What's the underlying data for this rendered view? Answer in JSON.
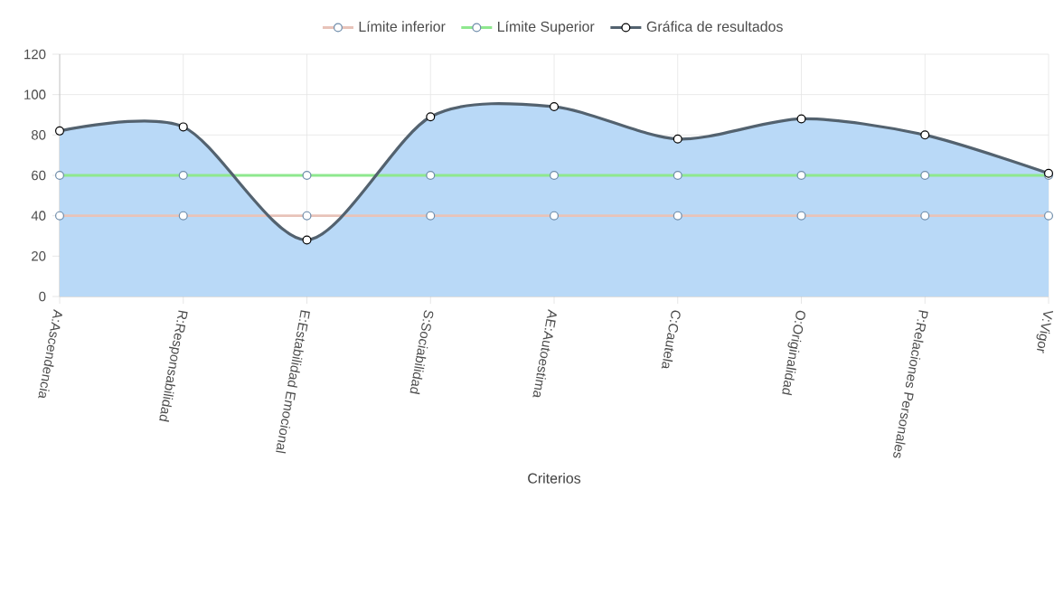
{
  "chart_data": {
    "type": "line",
    "xlabel": "Criterios",
    "categories": [
      "A:Ascendencia",
      "R:Responsabilidad",
      "E:Estabilidad Emocional",
      "S:Sociabilidad",
      "AE:Autoestima",
      "C:Cautela",
      "O:Originalidad",
      "P:Relaciones Personales",
      "V:Vigor"
    ],
    "series": [
      {
        "name": "Gráfica de resultados",
        "type": "area",
        "color": "#b9d9f7",
        "values": [
          82,
          84,
          28,
          89,
          94,
          78,
          88,
          80,
          61
        ]
      },
      {
        "name": "Límite inferior",
        "color": "#e8c3b9",
        "values": [
          40,
          40,
          40,
          40,
          40,
          40,
          40,
          40,
          40
        ]
      },
      {
        "name": "Límite Superior",
        "color": "#8ee88e",
        "values": [
          60,
          60,
          60,
          60,
          60,
          60,
          60,
          60,
          60
        ]
      }
    ],
    "ylim": [
      0,
      120
    ],
    "yticks": [
      0,
      20,
      40,
      60,
      80,
      100,
      120
    ],
    "grid": true,
    "legend": "top",
    "marker": "circle"
  }
}
